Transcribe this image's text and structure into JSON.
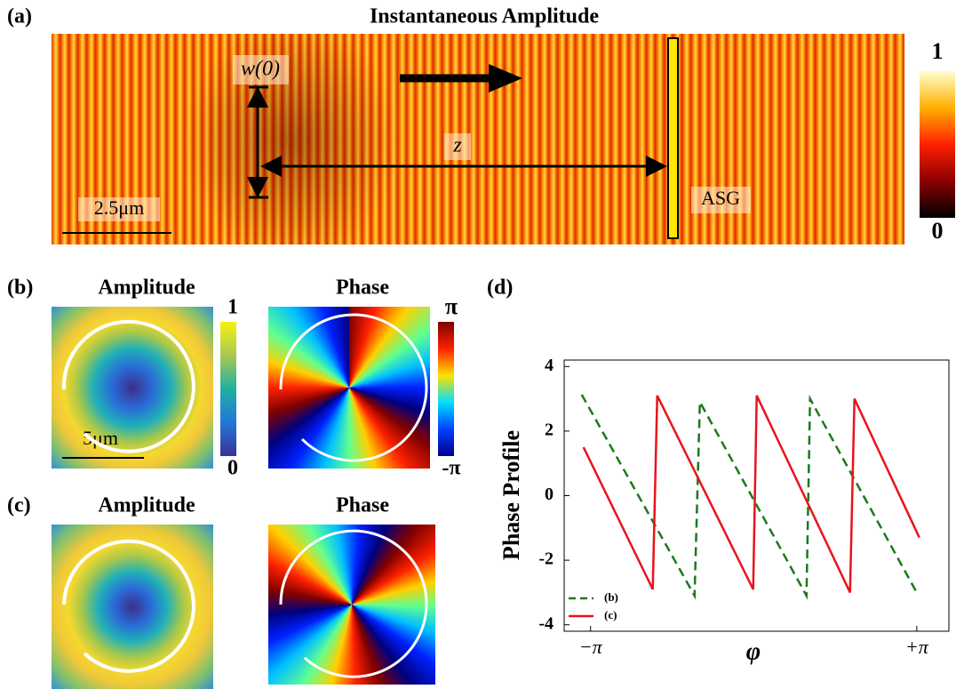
{
  "panel_a": {
    "label": "(a)",
    "title": "Instantaneous Amplitude",
    "waist_label": "w(0)",
    "distance_label": "z",
    "scale_label": "2.5μm",
    "grating_label": "ASG",
    "colorbar_max": "1",
    "colorbar_min": "0"
  },
  "panel_b": {
    "label": "(b)",
    "amplitude_title": "Amplitude",
    "phase_title": "Phase",
    "scale_label": "5μm",
    "amplitude_max": "1",
    "amplitude_min": "0",
    "phase_max": "π",
    "phase_min": "-π"
  },
  "panel_c": {
    "label": "(c)",
    "amplitude_title": "Amplitude",
    "phase_title": "Phase"
  },
  "chart_data": {
    "type": "line",
    "label": "(d)",
    "ylabel": "Phase Profile",
    "xlabel": "φ",
    "xlim": [
      -3.65,
      3.76
    ],
    "ylim": [
      -4.2,
      4.2
    ],
    "xticks": [
      {
        "value": -3.14159,
        "label": "−π"
      },
      {
        "value": 3.14159,
        "label": "+π"
      }
    ],
    "yticks": [
      -4,
      -2,
      0,
      2,
      4
    ],
    "series": [
      {
        "name": "(b)",
        "color": "#1a7a1a",
        "dashed": true,
        "x": [
          -3.313,
          -1.139,
          -1.036,
          1.017,
          1.086,
          3.14
        ],
        "values": [
          3.13,
          -3.1,
          2.9,
          -3.1,
          3.0,
          -3.0
        ]
      },
      {
        "name": "(c)",
        "color": "#e8141b",
        "dashed": false,
        "x": [
          -3.278,
          -1.944,
          -1.858,
          -0.01,
          0.059,
          1.856,
          1.941,
          3.191
        ],
        "values": [
          1.5,
          -2.9,
          3.1,
          -2.9,
          3.1,
          -3.0,
          3.0,
          -1.3
        ]
      }
    ]
  }
}
